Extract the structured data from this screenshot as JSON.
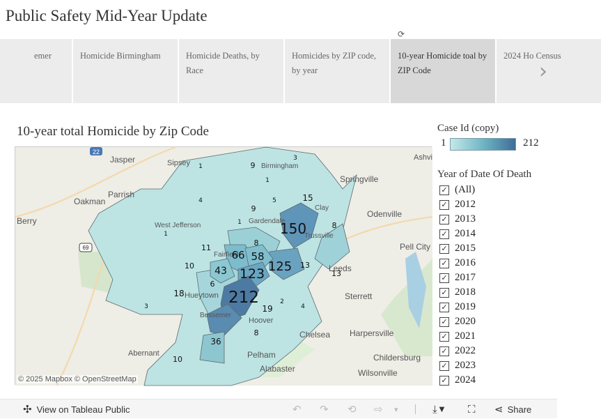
{
  "page": {
    "title": "Public Safety Mid-Year Update"
  },
  "carousel": {
    "prev_icon": "‹",
    "next_icon": "›",
    "tabs": [
      {
        "label": "emer"
      },
      {
        "label": "Homicide Birmingham"
      },
      {
        "label": "Homicide Deaths, by Race"
      },
      {
        "label": "Homicides by ZIP code, by year"
      },
      {
        "label": "10-year Homicide toal by ZIP Code"
      },
      {
        "label": "2024 Ho Census"
      }
    ],
    "active_index": 4
  },
  "map": {
    "title": "10-year total Homicide by Zip Code",
    "attribution": "© 2025 Mapbox  © OpenStreetMap",
    "places": [
      "Jasper",
      "Sipsey",
      "Parrish",
      "Oakman",
      "Berry",
      "West Jefferson",
      "Springville",
      "Odenville",
      "Pell City",
      "Leeds",
      "Sterrett",
      "Chelsea",
      "Harpersville",
      "Childersburg",
      "Pelham",
      "Alabaster",
      "Wilsonville",
      "Abernant",
      "Hueytown",
      "Bessemer",
      "Hoover",
      "Ashvi",
      "Clay",
      "Trussville",
      "Gardendale",
      "Fairfield",
      "Birmingham"
    ],
    "highway_shields": [
      "22",
      "69"
    ],
    "zip_values": [
      1,
      9,
      3,
      1,
      4,
      9,
      15,
      5,
      1,
      150,
      8,
      1,
      8,
      58,
      66,
      11,
      10,
      43,
      123,
      125,
      13,
      13,
      6,
      18,
      3,
      212,
      2,
      19,
      4,
      8,
      36,
      10
    ]
  },
  "legend": {
    "title": "Case Id (copy)",
    "min": "1",
    "max": "212",
    "colors": {
      "low": "#c4e8ea",
      "mid": "#6fb6c4",
      "high": "#3f6d97"
    }
  },
  "filter": {
    "title": "Year of Date Of Death",
    "items": [
      "(All)",
      "2012",
      "2013",
      "2014",
      "2015",
      "2016",
      "2017",
      "2018",
      "2019",
      "2020",
      "2021",
      "2022",
      "2023",
      "2024"
    ],
    "check_mark": "✓"
  },
  "toolbar": {
    "view_label": "View on Tableau Public",
    "share_label": "Share",
    "icons": {
      "tableau": "✣",
      "undo": "↶",
      "redo": "↷",
      "revert": "⟲",
      "refresh": "⇨",
      "pause": "▾",
      "download": "⤓",
      "fullscreen": "⛶",
      "share": "⋖"
    }
  }
}
